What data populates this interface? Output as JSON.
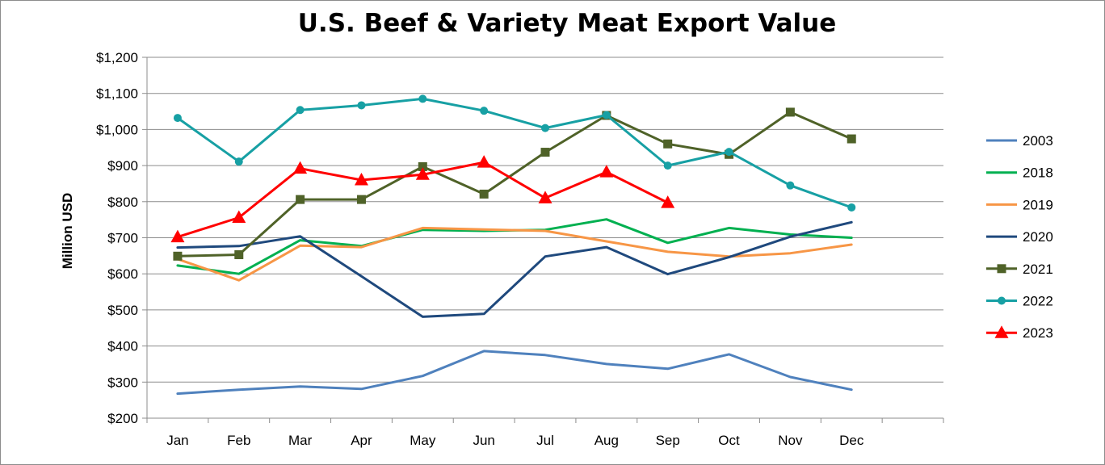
{
  "chart_data": {
    "type": "line",
    "title": "U.S. Beef & Variety Meat Export Value",
    "xlabel": "",
    "ylabel": "Million USD",
    "ylim": [
      200,
      1200
    ],
    "yticks": [
      200,
      300,
      400,
      500,
      600,
      700,
      800,
      900,
      1000,
      1100,
      1200
    ],
    "ytick_labels": [
      "$200",
      "$300",
      "$400",
      "$500",
      "$600",
      "$700",
      "$800",
      "$900",
      "$1,000",
      "$1,100",
      "$1,200"
    ],
    "categories": [
      "Jan",
      "Feb",
      "Mar",
      "Apr",
      "May",
      "Jun",
      "Jul",
      "Aug",
      "Sep",
      "Oct",
      "Nov",
      "Dec"
    ],
    "grid": true,
    "legend": "right",
    "series": [
      {
        "name": "2003",
        "color": "#4f81bd",
        "marker": "none",
        "values": [
          268,
          279,
          288,
          281,
          317,
          386,
          375,
          350,
          337,
          377,
          314,
          279
        ]
      },
      {
        "name": "2018",
        "color": "#00b050",
        "marker": "none",
        "values": [
          623,
          600,
          693,
          677,
          722,
          719,
          722,
          751,
          686,
          727,
          709,
          700
        ]
      },
      {
        "name": "2019",
        "color": "#f79646",
        "marker": "none",
        "values": [
          641,
          582,
          678,
          674,
          727,
          723,
          719,
          690,
          661,
          648,
          657,
          681
        ]
      },
      {
        "name": "2020",
        "color": "#1f497d",
        "marker": "none",
        "values": [
          673,
          677,
          704,
          593,
          481,
          489,
          648,
          674,
          599,
          646,
          703,
          743
        ]
      },
      {
        "name": "2021",
        "color": "#4f6228",
        "marker": "square",
        "values": [
          649,
          653,
          806,
          806,
          897,
          821,
          937,
          1039,
          960,
          931,
          1048,
          974
        ]
      },
      {
        "name": "2022",
        "color": "#17a0a4",
        "marker": "circle",
        "values": [
          1032,
          911,
          1054,
          1067,
          1085,
          1052,
          1004,
          1040,
          900,
          938,
          845,
          784
        ]
      },
      {
        "name": "2023",
        "color": "#ff0000",
        "marker": "triangle",
        "values": [
          702,
          756,
          892,
          860,
          875,
          909,
          810,
          882,
          797,
          null,
          null,
          null
        ]
      }
    ]
  }
}
